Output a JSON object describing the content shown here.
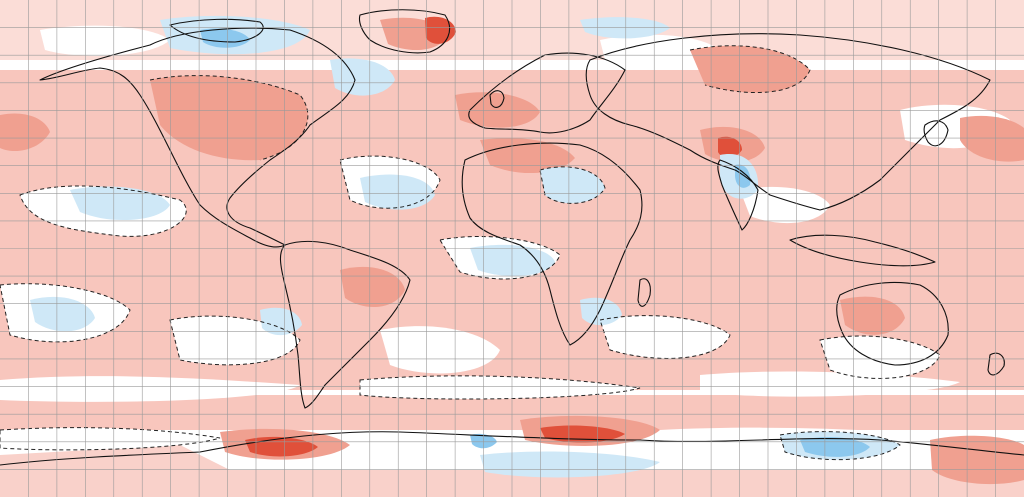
{
  "map": {
    "projection": "equirectangular",
    "grid": {
      "lon_step_deg": 10,
      "lat_step_deg": 10,
      "color": "#9a9a9a"
    },
    "palette": {
      "background": "#ffffff",
      "warm_light": "#f8c6bd",
      "warm_medium": "#f0a090",
      "warm_strong": "#e0503a",
      "cool_light": "#cfe8f7",
      "cool_medium": "#8cc8ee",
      "coastline": "#111111",
      "dashed_contour": "#222222"
    },
    "legend": "none",
    "text_labels": "none"
  }
}
